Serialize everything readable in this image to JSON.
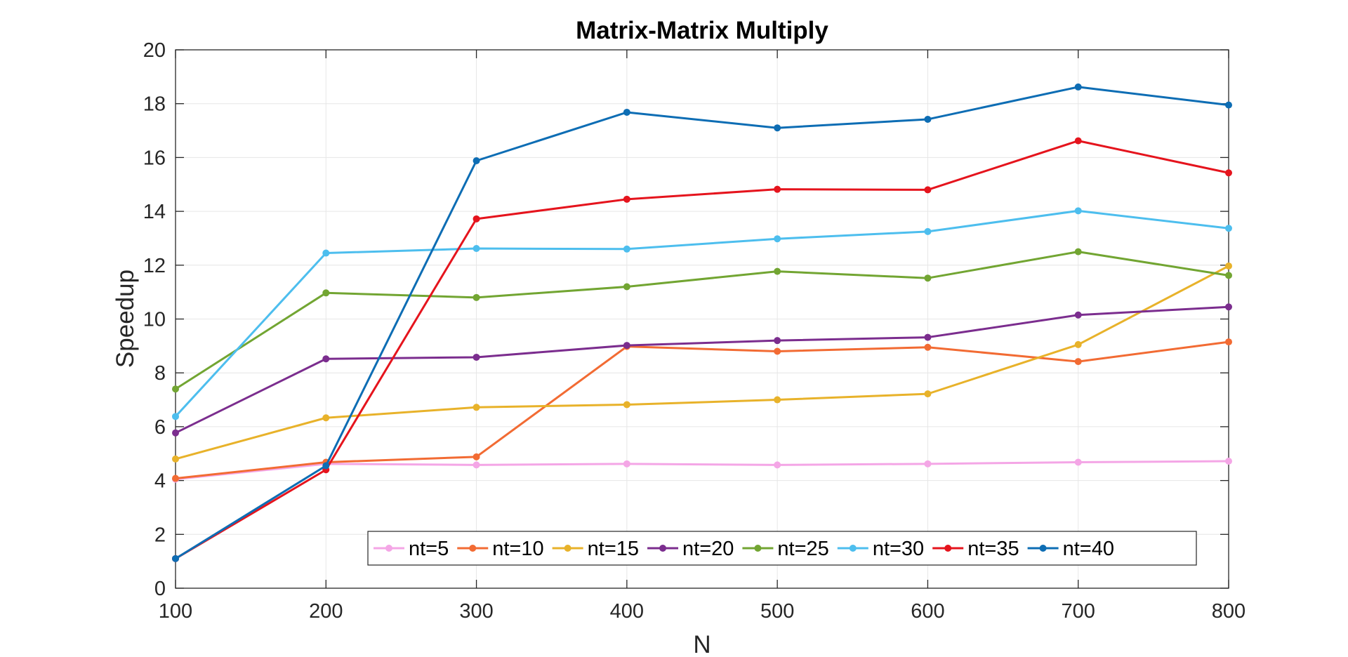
{
  "chart_data": {
    "type": "line",
    "title": "Matrix-Matrix Multiply",
    "xlabel": "N",
    "ylabel": "Speedup",
    "xlim": [
      100,
      800
    ],
    "ylim": [
      0,
      20
    ],
    "x": [
      100,
      200,
      300,
      400,
      500,
      600,
      700,
      800
    ],
    "xticks": [
      "100",
      "200",
      "300",
      "400",
      "500",
      "600",
      "700",
      "800"
    ],
    "yticks": [
      "0",
      "2",
      "4",
      "6",
      "8",
      "10",
      "12",
      "14",
      "16",
      "18",
      "20"
    ],
    "grid": true,
    "legend_position": "bottom-center",
    "legend_orientation": "horizontal",
    "series": [
      {
        "name": "nt=5",
        "color": "#F4A6E6",
        "values": [
          4.05,
          4.62,
          4.58,
          4.62,
          4.58,
          4.62,
          4.68,
          4.72
        ]
      },
      {
        "name": "nt=10",
        "color": "#F26B33",
        "values": [
          4.08,
          4.68,
          4.88,
          8.98,
          8.8,
          8.95,
          8.42,
          9.15
        ]
      },
      {
        "name": "nt=15",
        "color": "#E8B22A",
        "values": [
          4.8,
          6.33,
          6.72,
          6.82,
          7.0,
          7.22,
          9.05,
          11.97
        ]
      },
      {
        "name": "nt=20",
        "color": "#7B2D8E",
        "values": [
          5.77,
          8.52,
          8.58,
          9.02,
          9.2,
          9.32,
          10.15,
          10.45
        ]
      },
      {
        "name": "nt=25",
        "color": "#72A532",
        "values": [
          7.4,
          10.97,
          10.8,
          11.2,
          11.77,
          11.52,
          12.5,
          11.62
        ]
      },
      {
        "name": "nt=30",
        "color": "#4DBEEE",
        "values": [
          6.38,
          12.45,
          12.62,
          12.6,
          12.98,
          13.25,
          14.02,
          13.37
        ]
      },
      {
        "name": "nt=35",
        "color": "#E5141D",
        "values": [
          1.1,
          4.4,
          13.72,
          14.45,
          14.82,
          14.8,
          16.62,
          15.43
        ]
      },
      {
        "name": "nt=40",
        "color": "#0D6DB4",
        "values": [
          1.1,
          4.55,
          15.88,
          17.68,
          17.1,
          17.42,
          18.62,
          17.95
        ]
      }
    ]
  }
}
